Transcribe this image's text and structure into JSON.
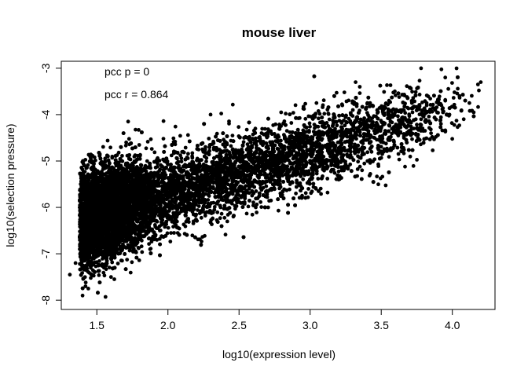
{
  "chart_data": {
    "type": "scatter",
    "title": "mouse liver",
    "xlabel": "log10(expression level)",
    "ylabel": "log10(selection pressure)",
    "xlim": [
      1.25,
      4.3
    ],
    "ylim": [
      -8.2,
      -2.85
    ],
    "x_ticks": [
      "1.5",
      "2.0",
      "2.5",
      "3.0",
      "3.5",
      "4.0"
    ],
    "y_ticks": [
      "-3",
      "-4",
      "-5",
      "-6",
      "-7",
      "-8"
    ],
    "annotations": [
      "pcc p = 0",
      "pcc r = 0.864"
    ],
    "point_color": "#000000",
    "points_x": [
      1.31,
      1.35,
      1.38,
      1.42,
      1.45,
      1.48,
      1.52,
      1.55,
      1.58,
      1.62,
      1.65,
      1.68,
      1.72,
      1.75,
      1.78,
      1.82,
      1.85,
      1.88,
      1.92,
      1.95,
      1.98,
      2.02,
      2.05,
      2.08,
      2.12,
      2.15,
      2.18,
      2.22,
      2.25,
      2.28,
      2.32,
      2.35,
      2.38,
      2.42,
      2.45,
      2.48,
      2.52,
      2.55,
      2.58,
      2.62,
      2.65,
      2.68,
      2.72,
      2.75,
      2.78,
      2.82,
      2.85,
      2.88,
      2.92,
      2.95,
      2.98,
      3.02,
      3.05,
      3.08,
      3.12,
      3.15,
      3.18,
      3.22,
      3.25,
      3.28,
      3.32,
      3.35,
      3.38,
      3.42,
      3.45,
      3.48,
      3.52,
      3.55,
      3.58,
      3.62,
      3.65,
      3.68,
      3.72,
      3.75,
      3.78,
      3.82,
      3.85,
      3.88,
      3.92,
      3.95,
      3.98,
      4.02,
      4.05,
      4.08,
      4.12,
      4.15,
      4.2,
      1.4,
      1.44,
      1.72,
      2.3,
      3.32,
      3.78,
      4.18,
      1.55,
      1.6,
      2.9,
      3.95
    ],
    "points_y": [
      -7.45,
      -7.2,
      -6.9,
      -7.7,
      -6.55,
      -6.8,
      -6.35,
      -7.05,
      -5.95,
      -6.6,
      -6.15,
      -6.4,
      -5.75,
      -6.7,
      -6.0,
      -5.9,
      -6.25,
      -5.5,
      -6.45,
      -5.8,
      -6.05,
      -5.6,
      -6.2,
      -5.35,
      -5.85,
      -5.55,
      -6.3,
      -5.2,
      -5.7,
      -5.45,
      -5.9,
      -5.3,
      -5.6,
      -5.05,
      -5.5,
      -5.75,
      -5.15,
      -5.4,
      -4.9,
      -5.65,
      -5.25,
      -4.85,
      -5.45,
      -5.0,
      -5.2,
      -4.75,
      -5.35,
      -4.95,
      -4.7,
      -5.1,
      -4.6,
      -5.25,
      -4.8,
      -4.55,
      -5.0,
      -4.45,
      -4.9,
      -4.65,
      -5.15,
      -4.4,
      -4.7,
      -4.25,
      -4.85,
      -4.5,
      -4.35,
      -4.75,
      -4.2,
      -4.55,
      -4.05,
      -4.45,
      -4.15,
      -4.6,
      -3.95,
      -4.3,
      -4.1,
      -3.8,
      -4.4,
      -3.9,
      -4.2,
      -3.7,
      -4.0,
      -3.85,
      -3.6,
      -4.1,
      -3.75,
      -3.95,
      -3.3,
      -7.9,
      -7.75,
      -4.15,
      -4.0,
      -3.3,
      -3.0,
      -3.35,
      -7.3,
      -7.5,
      -5.7,
      -3.2
    ],
    "cloud_points": 12000,
    "cloud_center": {
      "slope": 0.92,
      "intercept": -7.55
    },
    "cloud_spread": 0.42
  }
}
